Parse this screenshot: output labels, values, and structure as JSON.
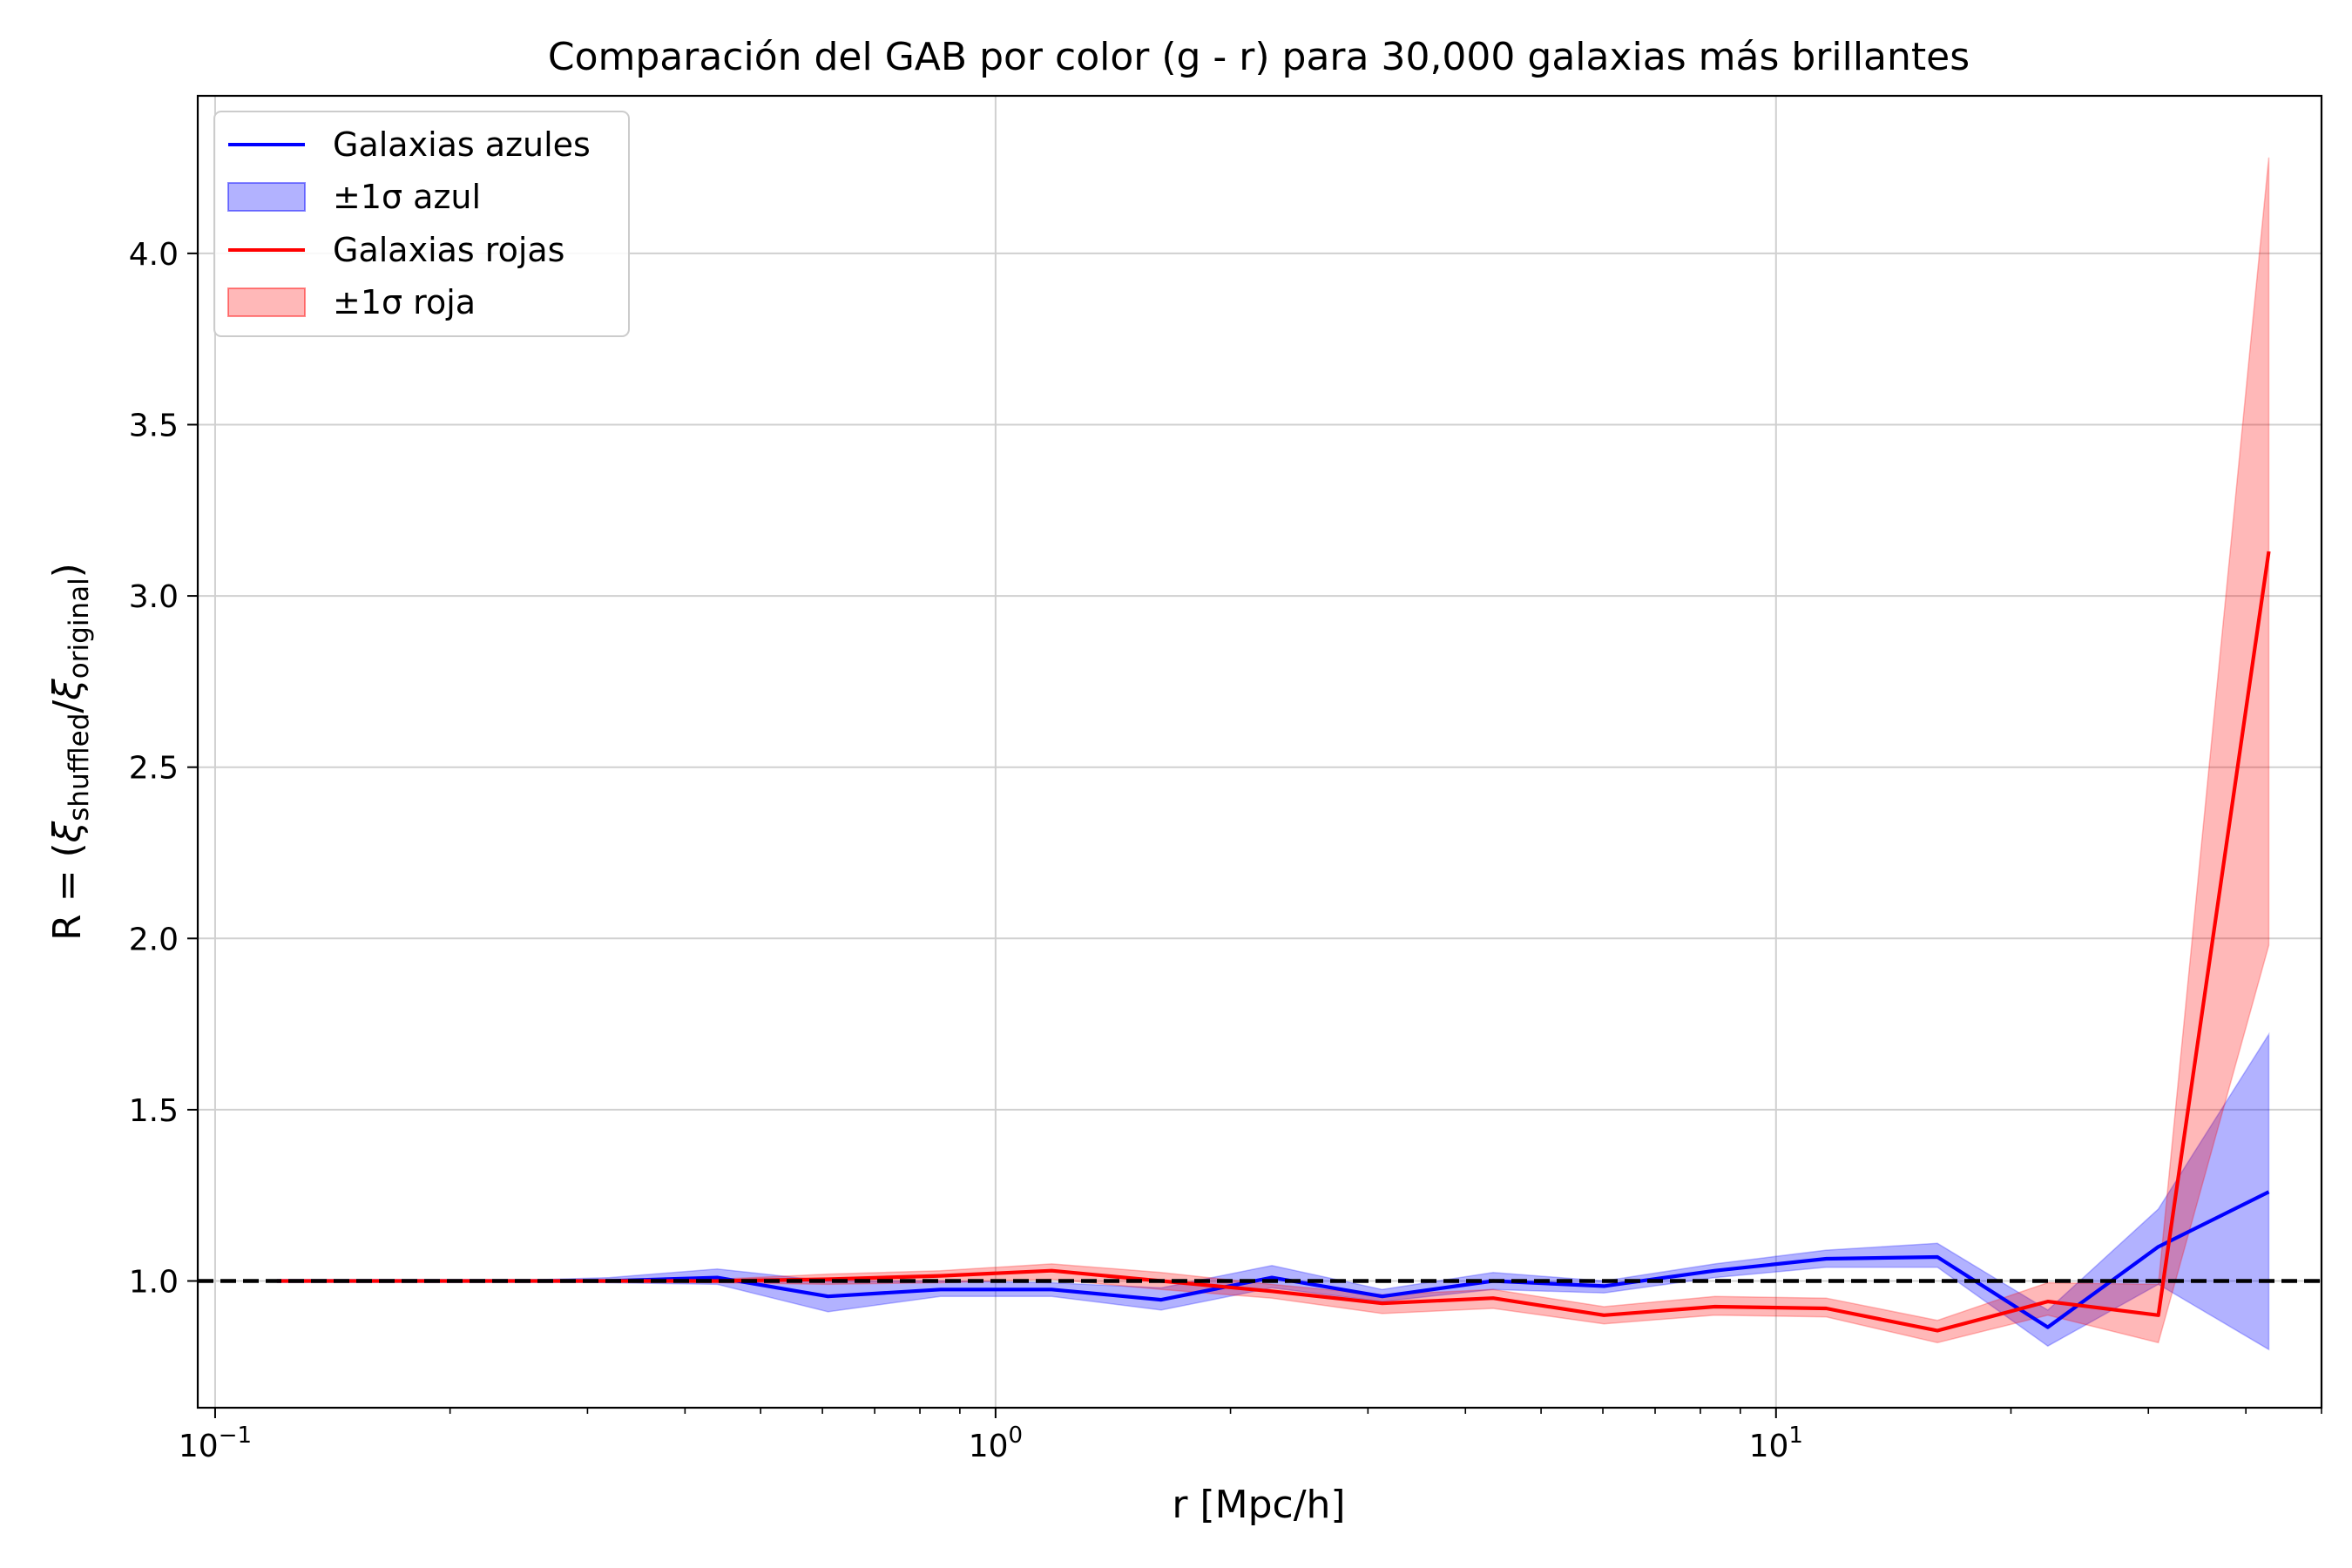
{
  "chart_data": {
    "type": "line",
    "title": "Comparación del GAB por color (g - r) para 30,000 galaxias más brillantes",
    "xlabel": "r [Mpc/h]",
    "ylabel": "R = (ξshuffled/ξoriginal)",
    "ylabel_parts": {
      "prefix": "R = (",
      "xi": "ξ",
      "sub1": "shuffled",
      "slash": "/",
      "sub2": "original",
      "suffix": ")"
    },
    "xscale": "log",
    "xlim": [
      0.095,
      50
    ],
    "ylim": [
      0.63,
      4.46
    ],
    "grid": true,
    "legend_position": "top-left",
    "x_ticks": [
      {
        "value": 0.1,
        "base": "10",
        "exp": "−1"
      },
      {
        "value": 1,
        "base": "10",
        "exp": "0"
      },
      {
        "value": 10,
        "base": "10",
        "exp": "1"
      }
    ],
    "y_ticks": [
      {
        "value": 1.0,
        "label": "1.0"
      },
      {
        "value": 1.5,
        "label": "1.5"
      },
      {
        "value": 2.0,
        "label": "2.0"
      },
      {
        "value": 2.5,
        "label": "2.5"
      },
      {
        "value": 3.0,
        "label": "3.0"
      },
      {
        "value": 3.5,
        "label": "3.5"
      },
      {
        "value": 4.0,
        "label": "4.0"
      }
    ],
    "reference_line": {
      "y": 1.0,
      "style": "dashed",
      "color": "#000000"
    },
    "x": [
      0.12,
      0.17,
      0.23,
      0.32,
      0.44,
      0.61,
      0.85,
      1.18,
      1.63,
      2.26,
      3.13,
      4.34,
      6.02,
      8.35,
      11.6,
      16.1,
      22.3,
      30.9,
      42.8
    ],
    "series": [
      {
        "name": "Galaxias azules",
        "band_name": "±1σ azul",
        "color": "#0000ff",
        "band_color": "#0000ff",
        "band_opacity": 0.3,
        "values": [
          1.0,
          1.0,
          1.0,
          1.0,
          1.01,
          0.955,
          0.975,
          0.975,
          0.945,
          1.01,
          0.955,
          1.0,
          0.985,
          1.03,
          1.065,
          1.07,
          0.865,
          1.1,
          1.26
        ],
        "lower": [
          1.0,
          1.0,
          1.0,
          0.995,
          0.99,
          0.91,
          0.955,
          0.955,
          0.915,
          0.98,
          0.94,
          0.975,
          0.965,
          1.01,
          1.04,
          1.04,
          0.81,
          0.99,
          0.8
        ],
        "upper": [
          1.0,
          1.0,
          1.0,
          1.01,
          1.035,
          1.0,
          1.0,
          0.995,
          0.98,
          1.045,
          0.975,
          1.025,
          1.0,
          1.05,
          1.09,
          1.11,
          0.915,
          1.21,
          1.72
        ]
      },
      {
        "name": "Galaxias rojas",
        "band_name": "±1σ roja",
        "color": "#ff0000",
        "band_color": "#ff0000",
        "band_opacity": 0.28,
        "values": [
          1.0,
          1.0,
          1.0,
          1.0,
          1.0,
          1.005,
          1.015,
          1.03,
          1.0,
          0.97,
          0.935,
          0.95,
          0.9,
          0.925,
          0.92,
          0.855,
          0.94,
          0.9,
          3.13
        ],
        "lower": [
          1.0,
          1.0,
          1.0,
          1.0,
          0.995,
          0.99,
          0.995,
          1.005,
          0.975,
          0.95,
          0.905,
          0.92,
          0.875,
          0.9,
          0.895,
          0.82,
          0.9,
          0.82,
          1.98
        ],
        "upper": [
          1.0,
          1.0,
          1.0,
          1.0,
          1.005,
          1.02,
          1.03,
          1.05,
          1.025,
          0.99,
          0.96,
          0.975,
          0.925,
          0.955,
          0.95,
          0.885,
          0.995,
          0.99,
          4.28
        ]
      }
    ]
  }
}
